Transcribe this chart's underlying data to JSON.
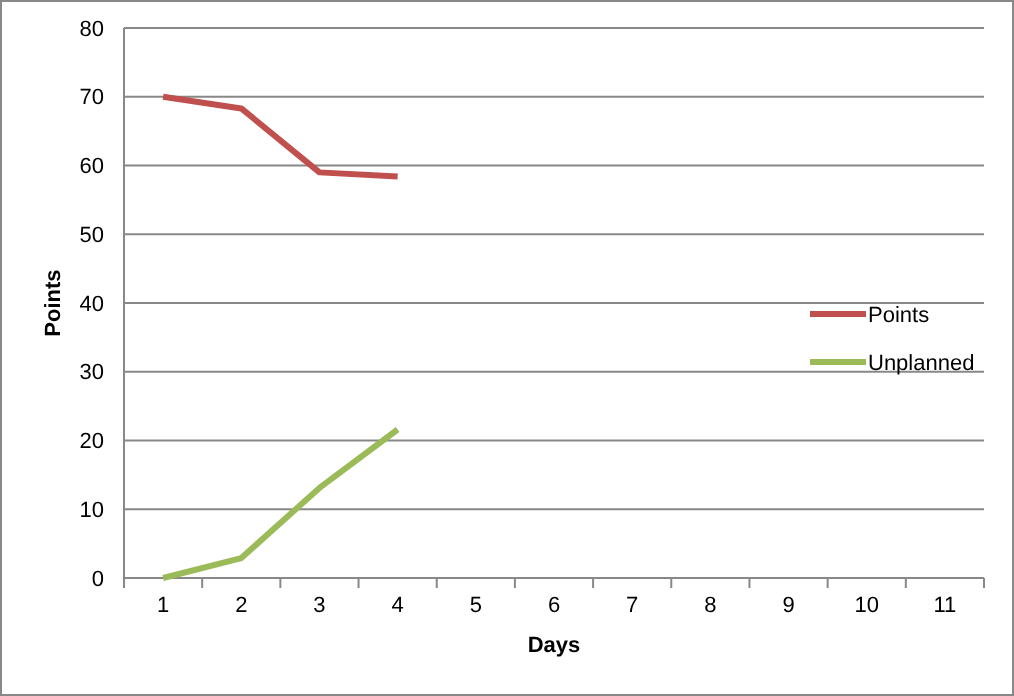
{
  "chart_data": {
    "type": "line",
    "xlabel": "Days",
    "ylabel": "Points",
    "categories": [
      "1",
      "2",
      "3",
      "4",
      "5",
      "6",
      "7",
      "8",
      "9",
      "10",
      "11"
    ],
    "series": [
      {
        "name": "Points",
        "color": "#c0504d",
        "values": [
          70,
          68.3,
          59,
          58.4,
          null,
          null,
          null,
          null,
          null,
          null,
          null
        ]
      },
      {
        "name": "Unplanned",
        "color": "#9bbb59",
        "values": [
          0,
          2.9,
          13.1,
          21.6,
          null,
          null,
          null,
          null,
          null,
          null,
          null
        ]
      }
    ],
    "ylim": [
      0,
      80
    ],
    "yticks": [
      0,
      10,
      20,
      30,
      40,
      50,
      60,
      70,
      80
    ],
    "grid": "y",
    "legend": "right",
    "marker": "none",
    "line_style": "solid"
  }
}
